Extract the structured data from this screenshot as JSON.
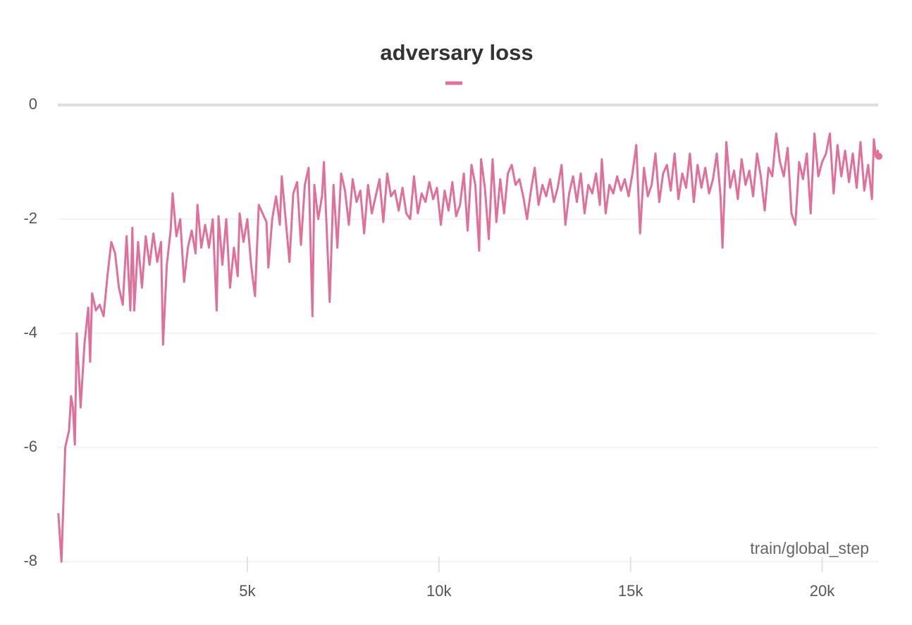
{
  "chart_data": {
    "type": "line",
    "title": "adversary loss",
    "x_label": "train/global_step",
    "xlim": [
      55,
      21480
    ],
    "ylim": [
      -8,
      0
    ],
    "xticks": [
      {
        "value": 5000,
        "label": "5k"
      },
      {
        "value": 10000,
        "label": "10k"
      },
      {
        "value": 15000,
        "label": "15k"
      },
      {
        "value": 20000,
        "label": "20k"
      }
    ],
    "yticks": [
      0,
      -2,
      -4,
      -6,
      -8
    ],
    "grid": true,
    "x": [
      70,
      150,
      250,
      350,
      400,
      450,
      500,
      550,
      650,
      750,
      850,
      900,
      950,
      1050,
      1150,
      1250,
      1350,
      1450,
      1550,
      1650,
      1750,
      1850,
      1950,
      2000,
      2050,
      2150,
      2250,
      2350,
      2450,
      2550,
      2650,
      2750,
      2800,
      2900,
      3000,
      3050,
      3150,
      3250,
      3350,
      3450,
      3550,
      3650,
      3700,
      3800,
      3900,
      4000,
      4100,
      4200,
      4250,
      4350,
      4450,
      4550,
      4650,
      4750,
      4800,
      4900,
      5000,
      5100,
      5200,
      5300,
      5400,
      5500,
      5550,
      5650,
      5750,
      5850,
      5900,
      6000,
      6100,
      6200,
      6300,
      6400,
      6500,
      6600,
      6700,
      6750,
      6850,
      6950,
      7000,
      7150,
      7250,
      7350,
      7450,
      7550,
      7650,
      7750,
      7850,
      7950,
      8050,
      8150,
      8250,
      8350,
      8450,
      8550,
      8650,
      8750,
      8850,
      8950,
      9050,
      9150,
      9250,
      9350,
      9450,
      9550,
      9650,
      9750,
      9850,
      9950,
      10050,
      10150,
      10250,
      10350,
      10450,
      10550,
      10650,
      10750,
      10850,
      10950,
      11050,
      11100,
      11200,
      11300,
      11400,
      11500,
      11600,
      11700,
      11800,
      11900,
      12000,
      12100,
      12200,
      12300,
      12400,
      12500,
      12600,
      12700,
      12800,
      12900,
      13000,
      13100,
      13200,
      13300,
      13400,
      13500,
      13600,
      13700,
      13800,
      13900,
      14000,
      14100,
      14200,
      14250,
      14350,
      14450,
      14550,
      14650,
      14750,
      14850,
      14950,
      15050,
      15150,
      15250,
      15350,
      15450,
      15550,
      15650,
      15750,
      15850,
      15950,
      16050,
      16150,
      16250,
      16350,
      16450,
      16550,
      16650,
      16750,
      16850,
      16950,
      17050,
      17150,
      17250,
      17350,
      17400,
      17500,
      17600,
      17700,
      17800,
      17900,
      18000,
      18100,
      18200,
      18300,
      18400,
      18500,
      18600,
      18700,
      18800,
      18900,
      19000,
      19100,
      19200,
      19300,
      19400,
      19500,
      19600,
      19700,
      19800,
      19900,
      20000,
      20100,
      20200,
      20300,
      20400,
      20500,
      20600,
      20700,
      20800,
      20900,
      21000,
      21100,
      21200,
      21300,
      21350,
      21400,
      21450,
      21480
    ],
    "series": [
      {
        "color": "#e07099",
        "values": [
          -7.15,
          -8.0,
          -6.0,
          -5.7,
          -5.1,
          -5.3,
          -5.95,
          -4.0,
          -5.3,
          -4.2,
          -3.55,
          -4.5,
          -3.3,
          -3.6,
          -3.5,
          -3.7,
          -3.0,
          -2.4,
          -2.6,
          -3.2,
          -3.5,
          -2.3,
          -3.6,
          -2.15,
          -3.6,
          -2.4,
          -3.2,
          -2.3,
          -2.8,
          -2.25,
          -2.75,
          -2.4,
          -4.2,
          -2.8,
          -2.2,
          -1.55,
          -2.3,
          -2.0,
          -3.1,
          -2.5,
          -2.2,
          -2.6,
          -1.75,
          -2.5,
          -2.1,
          -2.5,
          -2.0,
          -3.6,
          -1.95,
          -2.8,
          -2.0,
          -3.2,
          -2.5,
          -3.0,
          -1.9,
          -2.4,
          -2.0,
          -2.8,
          -3.35,
          -1.75,
          -1.9,
          -2.05,
          -2.85,
          -2.0,
          -1.6,
          -2.1,
          -1.25,
          -2.0,
          -2.75,
          -1.55,
          -1.35,
          -2.45,
          -1.4,
          -1.1,
          -3.7,
          -1.4,
          -2.0,
          -1.6,
          -1.0,
          -3.45,
          -1.4,
          -2.5,
          -1.2,
          -1.5,
          -2.1,
          -1.3,
          -1.7,
          -1.5,
          -2.25,
          -1.4,
          -1.9,
          -1.6,
          -1.3,
          -2.05,
          -1.2,
          -1.6,
          -1.5,
          -1.85,
          -1.45,
          -1.9,
          -2.0,
          -1.25,
          -1.9,
          -1.55,
          -1.7,
          -1.35,
          -1.65,
          -1.45,
          -2.1,
          -1.5,
          -1.85,
          -1.35,
          -1.95,
          -1.75,
          -1.2,
          -2.2,
          -1.05,
          -1.4,
          -2.55,
          -0.95,
          -1.45,
          -2.35,
          -0.95,
          -2.05,
          -1.3,
          -1.9,
          -1.2,
          -1.05,
          -1.4,
          -1.3,
          -1.6,
          -2.0,
          -1.5,
          -1.1,
          -1.75,
          -1.4,
          -1.6,
          -1.3,
          -1.7,
          -1.45,
          -1.05,
          -2.1,
          -1.55,
          -1.25,
          -1.7,
          -1.2,
          -1.9,
          -1.4,
          -1.55,
          -1.2,
          -1.75,
          -0.95,
          -1.9,
          -1.4,
          -1.55,
          -1.25,
          -1.5,
          -1.3,
          -1.6,
          -1.2,
          -0.7,
          -2.25,
          -1.1,
          -1.6,
          -1.4,
          -0.85,
          -1.7,
          -1.2,
          -1.05,
          -1.5,
          -0.85,
          -1.65,
          -1.2,
          -1.45,
          -0.85,
          -1.7,
          -1.05,
          -1.45,
          -1.1,
          -1.55,
          -1.3,
          -0.85,
          -1.6,
          -2.5,
          -0.65,
          -1.45,
          -1.15,
          -1.65,
          -0.95,
          -1.4,
          -1.15,
          -1.6,
          -0.85,
          -1.25,
          -1.85,
          -1.1,
          -1.25,
          -0.5,
          -1.0,
          -1.25,
          -0.75,
          -1.9,
          -2.1,
          -1.0,
          -1.3,
          -0.85,
          -1.9,
          -0.5,
          -1.25,
          -1.0,
          -0.85,
          -0.5,
          -1.55,
          -0.7,
          -1.25,
          -0.8,
          -1.35,
          -0.85,
          -1.45,
          -0.65,
          -1.5,
          -1.05,
          -1.65,
          -0.6,
          -0.9,
          -0.8,
          -0.9
        ]
      }
    ]
  }
}
